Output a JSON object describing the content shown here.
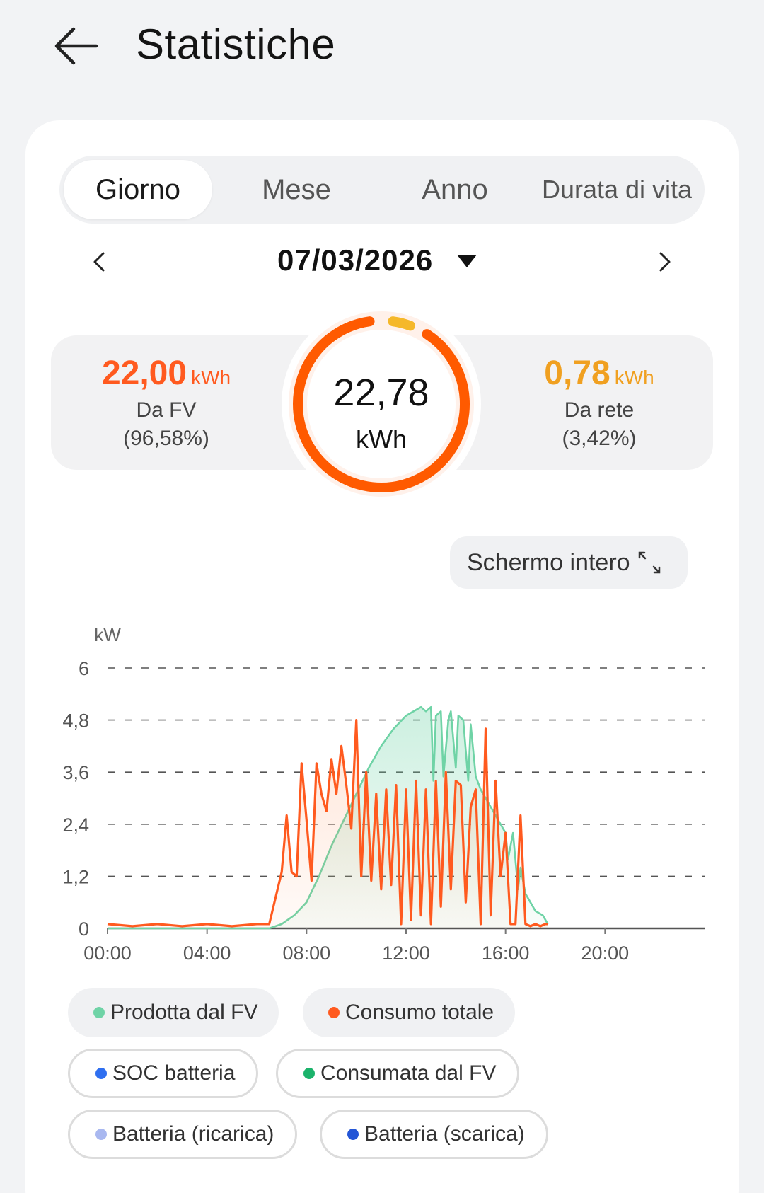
{
  "header": {
    "title": "Statistiche",
    "back_icon": "arrow-left-icon"
  },
  "tabs": [
    {
      "label": "Giorno",
      "active": true
    },
    {
      "label": "Mese",
      "active": false
    },
    {
      "label": "Anno",
      "active": false
    },
    {
      "label": "Durata di vita",
      "active": false
    }
  ],
  "date_nav": {
    "date": "07/03/2026",
    "prev_icon": "chevron-left-icon",
    "next_icon": "chevron-right-icon",
    "picker_icon": "caret-down-icon"
  },
  "summary": {
    "from_pv": {
      "value": "22,00",
      "unit": "kWh",
      "label": "Da FV",
      "percent": "(96,58%)",
      "color": "#ff5a1f"
    },
    "from_grid": {
      "value": "0,78",
      "unit": "kWh",
      "label": "Da rete",
      "percent": "(3,42%)",
      "color": "#f0a020"
    },
    "total": {
      "value": "22,78",
      "unit": "kWh",
      "pv_fraction": 0.9658,
      "grid_fraction": 0.0342
    }
  },
  "fullscreen": {
    "label": "Schermo intero",
    "icon": "expand-icon"
  },
  "legend": [
    {
      "label": "Prodotta dal FV",
      "color": "#6fd3a6",
      "style": "filled"
    },
    {
      "label": "Consumo totale",
      "color": "#ff5a1f",
      "style": "filled"
    },
    {
      "label": "SOC batteria",
      "color": "#2f6ff0",
      "style": "outline"
    },
    {
      "label": "Consumata dal FV",
      "color": "#1bb36b",
      "style": "outline"
    },
    {
      "label": "Batteria (ricarica)",
      "color": "#a9b8f0",
      "style": "outline"
    },
    {
      "label": "Batteria (scarica)",
      "color": "#2456d6",
      "style": "outline"
    }
  ],
  "chart_data": {
    "type": "line",
    "ylabel": "kW",
    "ylim": [
      0,
      6
    ],
    "yticks": [
      "0",
      "1,2",
      "2,4",
      "3,6",
      "4,8",
      "6"
    ],
    "ytick_values": [
      0,
      1.2,
      2.4,
      3.6,
      4.8,
      6
    ],
    "xlim": [
      0,
      24
    ],
    "xticks": [
      "00:00",
      "04:00",
      "08:00",
      "12:00",
      "16:00",
      "20:00"
    ],
    "xtick_values": [
      0,
      4,
      8,
      12,
      16,
      20
    ],
    "grid": true,
    "series": [
      {
        "name": "Prodotta dal FV",
        "color": "#6fd3a6",
        "fill": true,
        "x": [
          0,
          6.5,
          7.0,
          7.5,
          8.0,
          8.5,
          9.0,
          9.5,
          10.0,
          10.5,
          11.0,
          11.5,
          12.0,
          12.3,
          12.6,
          12.8,
          13.0,
          13.1,
          13.2,
          13.4,
          13.5,
          13.7,
          13.8,
          14.0,
          14.1,
          14.3,
          14.5,
          14.6,
          14.8,
          15.0,
          15.2,
          15.5,
          15.8,
          16.0,
          16.1,
          16.3,
          16.5,
          16.6,
          16.8,
          17.0,
          17.2,
          17.5,
          17.7
        ],
        "y": [
          0,
          0,
          0.1,
          0.3,
          0.6,
          1.2,
          1.9,
          2.5,
          3.1,
          3.7,
          4.2,
          4.6,
          4.9,
          5.0,
          5.1,
          5.0,
          5.1,
          3.4,
          4.9,
          5.0,
          3.5,
          4.8,
          5.0,
          3.7,
          4.9,
          4.8,
          3.4,
          4.7,
          3.5,
          3.2,
          3.0,
          2.7,
          2.4,
          2.2,
          1.6,
          2.2,
          0.9,
          1.4,
          0.8,
          0.6,
          0.4,
          0.3,
          0.1
        ]
      },
      {
        "name": "Consumo totale",
        "color": "#ff5a1f",
        "fill": true,
        "x": [
          0,
          1,
          2,
          3,
          4,
          5,
          6,
          6.5,
          7.0,
          7.2,
          7.4,
          7.6,
          7.8,
          8.0,
          8.2,
          8.4,
          8.6,
          8.8,
          9.0,
          9.2,
          9.4,
          9.6,
          9.8,
          10.0,
          10.2,
          10.4,
          10.6,
          10.8,
          11.0,
          11.2,
          11.4,
          11.6,
          11.8,
          12.0,
          12.2,
          12.4,
          12.6,
          12.8,
          13.0,
          13.2,
          13.4,
          13.6,
          13.8,
          14.0,
          14.2,
          14.4,
          14.6,
          14.8,
          15.0,
          15.2,
          15.4,
          15.6,
          15.8,
          16.0,
          16.2,
          16.4,
          16.6,
          16.8,
          17.0,
          17.2,
          17.4,
          17.6,
          17.7
        ],
        "y": [
          0.1,
          0.05,
          0.1,
          0.05,
          0.1,
          0.05,
          0.1,
          0.1,
          1.3,
          2.6,
          1.3,
          1.2,
          3.8,
          2.5,
          1.1,
          3.8,
          3.1,
          2.7,
          3.9,
          3.1,
          4.2,
          3.3,
          2.3,
          4.8,
          1.2,
          3.6,
          1.1,
          3.1,
          0.9,
          3.2,
          1.0,
          3.3,
          0.1,
          3.2,
          0.2,
          3.4,
          0.3,
          3.2,
          0.1,
          3.4,
          0.5,
          3.6,
          0.9,
          3.4,
          3.3,
          0.6,
          2.8,
          3.2,
          0.1,
          4.6,
          0.3,
          3.4,
          1.2,
          2.2,
          0.1,
          0.1,
          2.6,
          0.1,
          0.05,
          0.1,
          0.05,
          0.1,
          0.1
        ]
      }
    ]
  }
}
